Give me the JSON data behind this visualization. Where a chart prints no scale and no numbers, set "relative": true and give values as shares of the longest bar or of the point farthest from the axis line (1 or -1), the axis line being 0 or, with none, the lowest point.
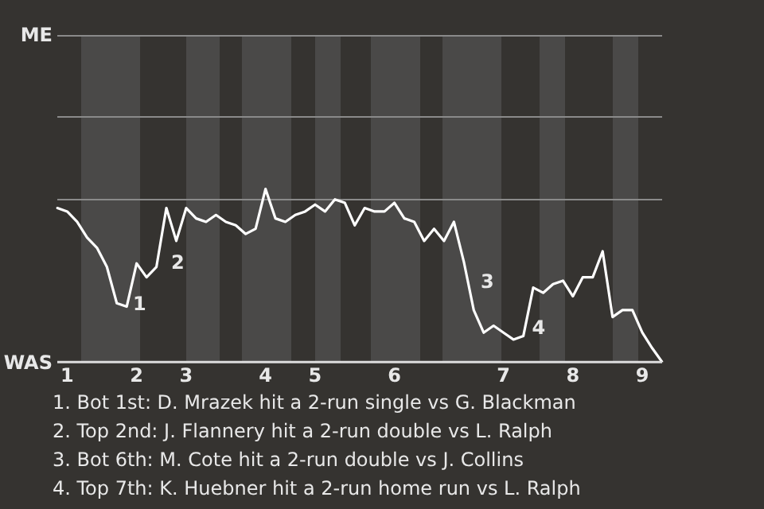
{
  "chart_data": {
    "type": "line",
    "relative": true,
    "categories": [
      null,
      "1",
      null,
      null,
      null,
      null,
      null,
      null,
      "2",
      null,
      null,
      null,
      null,
      "3",
      null,
      null,
      null,
      null,
      null,
      null,
      null,
      "4",
      null,
      null,
      null,
      null,
      "5",
      null,
      null,
      null,
      null,
      null,
      null,
      null,
      "6",
      null,
      null,
      null,
      null,
      null,
      null,
      null,
      null,
      null,
      null,
      "7",
      null,
      null,
      null,
      null,
      null,
      null,
      "8",
      null,
      null,
      null,
      null,
      null,
      null,
      "9",
      null,
      null
    ],
    "series": [
      {
        "color": "#ffffff",
        "values": [
          0.89,
          0.87,
          0.81,
          0.72,
          0.66,
          0.55,
          0.34,
          0.32,
          0.57,
          0.49,
          0.55,
          0.89,
          0.7,
          0.89,
          0.83,
          0.81,
          0.85,
          0.81,
          0.79,
          0.74,
          0.77,
          1,
          0.83,
          0.81,
          0.85,
          0.87,
          0.91,
          0.87,
          0.94,
          0.92,
          0.79,
          0.89,
          0.87,
          0.87,
          0.92,
          0.83,
          0.81,
          0.7,
          0.77,
          0.7,
          0.81,
          0.58,
          0.3,
          0.17,
          0.21,
          0.17,
          0.13,
          0.15,
          0.43,
          0.4,
          0.45,
          0.47,
          0.38,
          0.49,
          0.49,
          0.64,
          0.26,
          0.3,
          0.3,
          0.17,
          0.08,
          0
        ]
      }
    ],
    "ref_lines": [
      {
        "axis": "y",
        "value": 0.94,
        "color": "#8a8a8a"
      }
    ],
    "legend": false,
    "marker": "none",
    "annotations": [
      "ME",
      "WAS",
      "1",
      "2",
      "3",
      "4",
      "1. Bot 1st: D. Mrazek hit a 2-run single vs G. Blackman",
      "2. Top 2nd: J. Flannery hit a 2-run double vs L. Ralph",
      "3. Bot 6th: M. Cote hit a 2-run double vs J. Collins",
      "4. Top 7th: K. Huebner hit a 2-run home run vs L. Ralph"
    ]
  }
}
